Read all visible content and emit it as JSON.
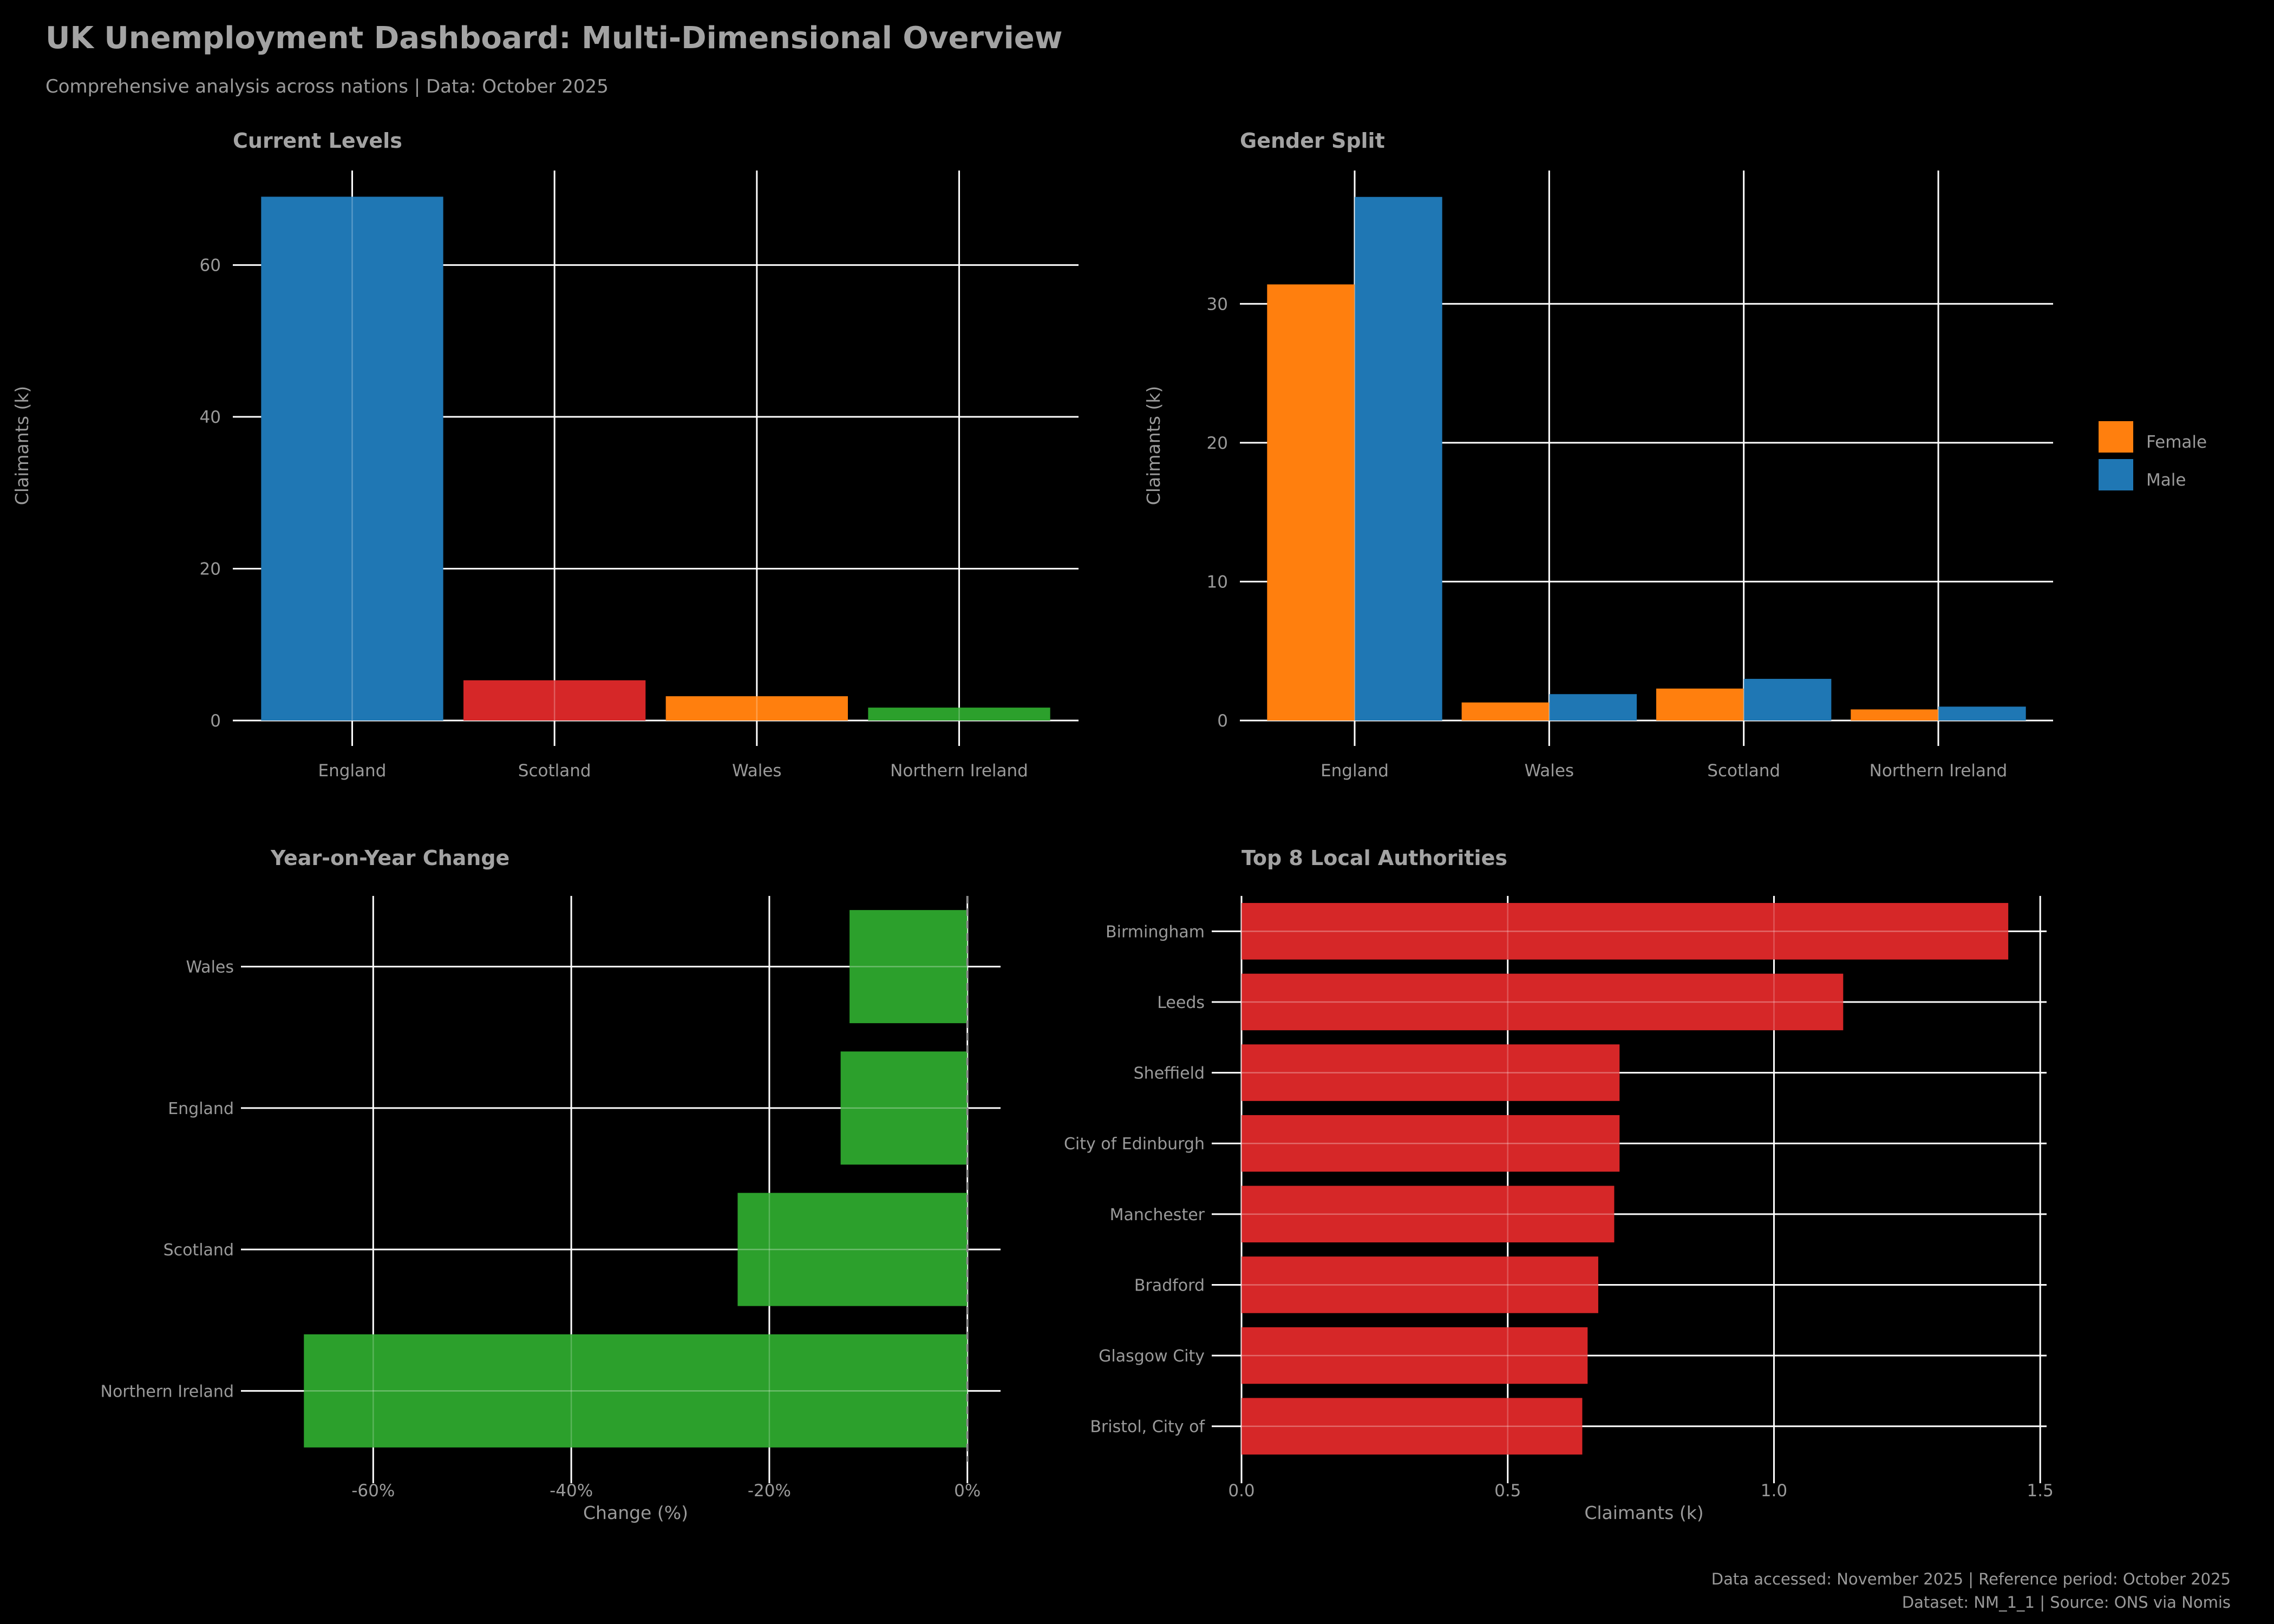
{
  "header": {
    "title": "UK Unemployment Dashboard: Multi-Dimensional Overview",
    "subtitle": "Comprehensive analysis across nations | Data: October 2025"
  },
  "footer": {
    "line1": "Data accessed: November 2025 | Reference period: October 2025",
    "line2": "Dataset: NM_1_1 | Source: ONS via Nomis"
  },
  "style": {
    "background": "#000000",
    "text_color": "#9a9a9a",
    "title_color": "#a3a3a3",
    "grid_color": "#ffffff",
    "zero_line_color": "#8a8a8a",
    "blue": "#1f77b4",
    "orange": "#ff7f0e",
    "red": "#d62728",
    "green": "#2ca02c"
  },
  "legend": {
    "items": [
      {
        "label": "Female",
        "color": "#ff7f0e"
      },
      {
        "label": "Male",
        "color": "#1f77b4"
      }
    ]
  },
  "chart_data": [
    {
      "id": "current-levels",
      "type": "bar",
      "title": "Current Levels",
      "ylabel": "Claimants (k)",
      "categories": [
        "England",
        "Scotland",
        "Wales",
        "Northern Ireland"
      ],
      "values": [
        69.0,
        5.3,
        3.2,
        1.7
      ],
      "bar_colors": [
        "#1f77b4",
        "#d62728",
        "#ff7f0e",
        "#2ca02c"
      ],
      "yticks": [
        0,
        20,
        40,
        60
      ],
      "ylim": [
        0,
        72.45
      ],
      "grid": true
    },
    {
      "id": "gender-split",
      "type": "bar",
      "title": "Gender Split",
      "ylabel": "Claimants (k)",
      "categories": [
        "England",
        "Wales",
        "Scotland",
        "Northern Ireland"
      ],
      "series": [
        {
          "name": "Female",
          "color": "#ff7f0e",
          "values": [
            31.4,
            1.3,
            2.3,
            0.8
          ]
        },
        {
          "name": "Male",
          "color": "#1f77b4",
          "values": [
            37.7,
            1.9,
            3.0,
            1.0
          ]
        }
      ],
      "yticks": [
        0,
        10,
        20,
        30
      ],
      "ylim": [
        0,
        39.6
      ],
      "legend_position": "right",
      "grid": true
    },
    {
      "id": "yoy-change",
      "type": "barh",
      "title": "Year-on-Year Change",
      "xlabel": "Change (%)",
      "categories": [
        "Wales",
        "England",
        "Scotland",
        "Northern Ireland"
      ],
      "values": [
        -11.9,
        -12.8,
        -23.2,
        -67.0
      ],
      "bar_color": "#2ca02c",
      "xticks": [
        -60,
        -40,
        -20,
        0
      ],
      "xtick_labels": [
        "-60%",
        "-40%",
        "-20%",
        "0%"
      ],
      "xlim": [
        -70.35,
        3.35
      ],
      "zero_line": true,
      "grid": true
    },
    {
      "id": "top-authorities",
      "type": "barh",
      "title": "Top 8 Local Authorities",
      "xlabel": "Claimants (k)",
      "categories": [
        "Birmingham",
        "Leeds",
        "Sheffield",
        "City of Edinburgh",
        "Manchester",
        "Bradford",
        "Glasgow City",
        "Bristol, City of"
      ],
      "values": [
        1.44,
        1.13,
        0.71,
        0.71,
        0.7,
        0.67,
        0.65,
        0.64
      ],
      "bar_color": "#d62728",
      "xticks": [
        0,
        0.5,
        1.0,
        1.5
      ],
      "xtick_labels": [
        "0.0",
        "0.5",
        "1.0",
        "1.5"
      ],
      "xlim": [
        0,
        1.512
      ],
      "zero_line": false,
      "grid": true
    }
  ]
}
